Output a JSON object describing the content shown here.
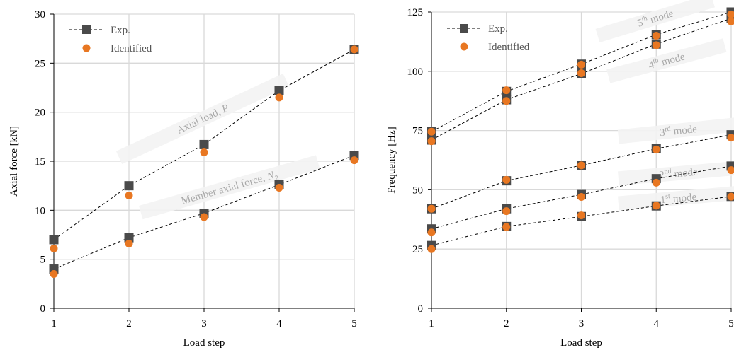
{
  "chart_data": [
    {
      "type": "line",
      "xlabel": "Load step",
      "ylabel": "Axial force [kN]",
      "xlim": [
        1,
        5
      ],
      "ylim": [
        0,
        30
      ],
      "x_ticks": [
        1,
        2,
        3,
        4,
        5
      ],
      "y_ticks": [
        0,
        5,
        10,
        15,
        20,
        25,
        30
      ],
      "grid": true,
      "legend": {
        "placement": "top-left",
        "entries": [
          {
            "label": "Exp.",
            "marker": "square",
            "color": "#4a4a4a",
            "line": "dashed"
          },
          {
            "label": "Identified",
            "marker": "circle",
            "color": "#e87722"
          }
        ]
      },
      "x": [
        1,
        2,
        3,
        4,
        5
      ],
      "series": [
        {
          "group": "P",
          "kind": "exp",
          "values": [
            7.0,
            12.5,
            16.7,
            22.2,
            26.4
          ]
        },
        {
          "group": "P",
          "kind": "identified",
          "values": [
            6.1,
            11.5,
            15.9,
            21.5,
            26.4
          ]
        },
        {
          "group": "N2",
          "kind": "exp",
          "values": [
            4.0,
            7.2,
            9.7,
            12.6,
            15.6
          ]
        },
        {
          "group": "N2",
          "kind": "identified",
          "values": [
            3.5,
            6.6,
            9.3,
            12.3,
            15.1
          ]
        }
      ],
      "annotations": [
        {
          "main": "Axial load, ",
          "italic": "P",
          "sub": "",
          "x": 3.0,
          "y": 19.0,
          "angle": -25
        },
        {
          "main": "Member axial force, ",
          "italic": "N",
          "sub": "2",
          "x": 3.35,
          "y": 12.0,
          "angle": -16
        }
      ]
    },
    {
      "type": "line",
      "xlabel": "Load step",
      "ylabel": "Frequency [Hz]",
      "xlim": [
        1,
        5
      ],
      "ylim": [
        0,
        125
      ],
      "x_ticks": [
        1,
        2,
        3,
        4,
        5
      ],
      "y_ticks": [
        0,
        25,
        50,
        75,
        100,
        125
      ],
      "grid": true,
      "legend": {
        "placement": "top-left",
        "entries": [
          {
            "label": "Exp.",
            "marker": "square",
            "color": "#4a4a4a",
            "line": "dashed"
          },
          {
            "label": "Identified",
            "marker": "circle",
            "color": "#e87722"
          }
        ]
      },
      "x": [
        1,
        2,
        3,
        4,
        5
      ],
      "series": [
        {
          "group": "mode1",
          "kind": "exp",
          "values": [
            26.5,
            34.5,
            38.7,
            43.2,
            47.2
          ]
        },
        {
          "group": "mode1",
          "kind": "identified",
          "values": [
            25.0,
            34.3,
            39.2,
            43.3,
            47.1
          ]
        },
        {
          "group": "mode2",
          "kind": "exp",
          "values": [
            33.5,
            42.0,
            48.0,
            54.7,
            60.0
          ]
        },
        {
          "group": "mode2",
          "kind": "identified",
          "values": [
            32.0,
            41.0,
            47.0,
            53.0,
            58.3
          ]
        },
        {
          "group": "mode3",
          "kind": "exp",
          "values": [
            42.0,
            53.8,
            60.3,
            67.3,
            73.2
          ]
        },
        {
          "group": "mode3",
          "kind": "identified",
          "values": [
            42.0,
            54.2,
            60.3,
            67.0,
            72.0
          ]
        },
        {
          "group": "mode4",
          "kind": "exp",
          "values": [
            71.0,
            88.0,
            99.0,
            111.5,
            122.3
          ]
        },
        {
          "group": "mode4",
          "kind": "identified",
          "values": [
            70.5,
            87.5,
            99.2,
            111.0,
            121.0
          ]
        },
        {
          "group": "mode5",
          "kind": "exp",
          "values": [
            74.5,
            91.5,
            103.0,
            115.5,
            125.0
          ]
        },
        {
          "group": "mode5",
          "kind": "identified",
          "values": [
            74.5,
            92.0,
            102.8,
            115.0,
            124.0
          ]
        }
      ],
      "annotations": [
        {
          "main": "5",
          "sup": "th",
          "rest": " mode",
          "x": 4.0,
          "y": 121.0,
          "angle": -17
        },
        {
          "main": "4",
          "sup": "th",
          "rest": " mode",
          "x": 4.15,
          "y": 103.0,
          "angle": -15
        },
        {
          "main": "3",
          "sup": "rd",
          "rest": " mode",
          "x": 4.3,
          "y": 73.5,
          "angle": -6
        },
        {
          "main": "2",
          "sup": "nd",
          "rest": " mode",
          "x": 4.3,
          "y": 55.5,
          "angle": -5
        },
        {
          "main": "1",
          "sup": "st",
          "rest": " mode",
          "x": 4.3,
          "y": 45.0,
          "angle": -5
        }
      ]
    }
  ]
}
